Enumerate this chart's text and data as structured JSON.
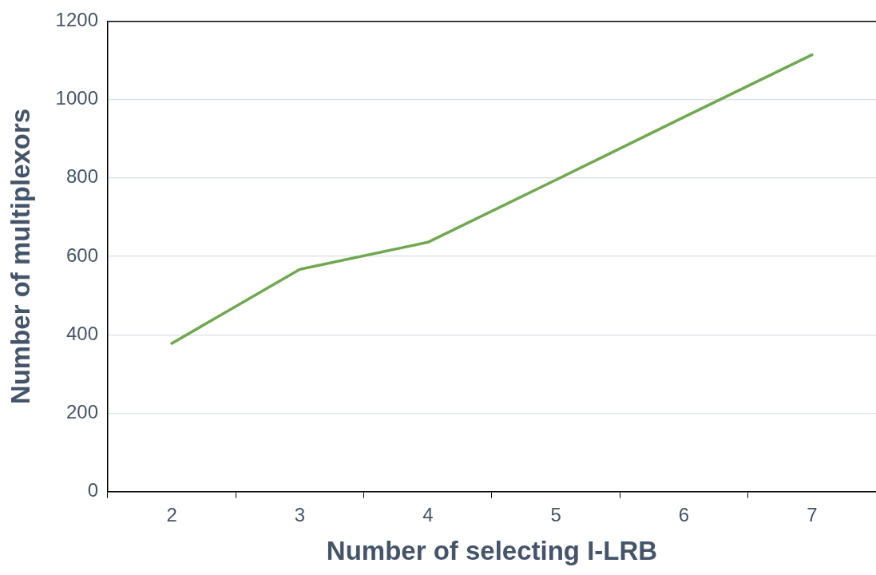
{
  "chart_data": {
    "type": "line",
    "xlabel": "Number of selecting I-LRB",
    "ylabel": "Number of multiplexors",
    "categories": [
      "2",
      "3",
      "4",
      "5",
      "6",
      "7"
    ],
    "series": [
      {
        "color": "#70a84f",
        "values": [
          378,
          567,
          636,
          795,
          955,
          1114
        ]
      }
    ],
    "ylim": [
      0,
      1200
    ],
    "yticks": [
      0,
      200,
      400,
      600,
      800,
      1000,
      1200
    ],
    "grid": "y",
    "marker": "none",
    "line_style": "solid",
    "legend": false
  }
}
